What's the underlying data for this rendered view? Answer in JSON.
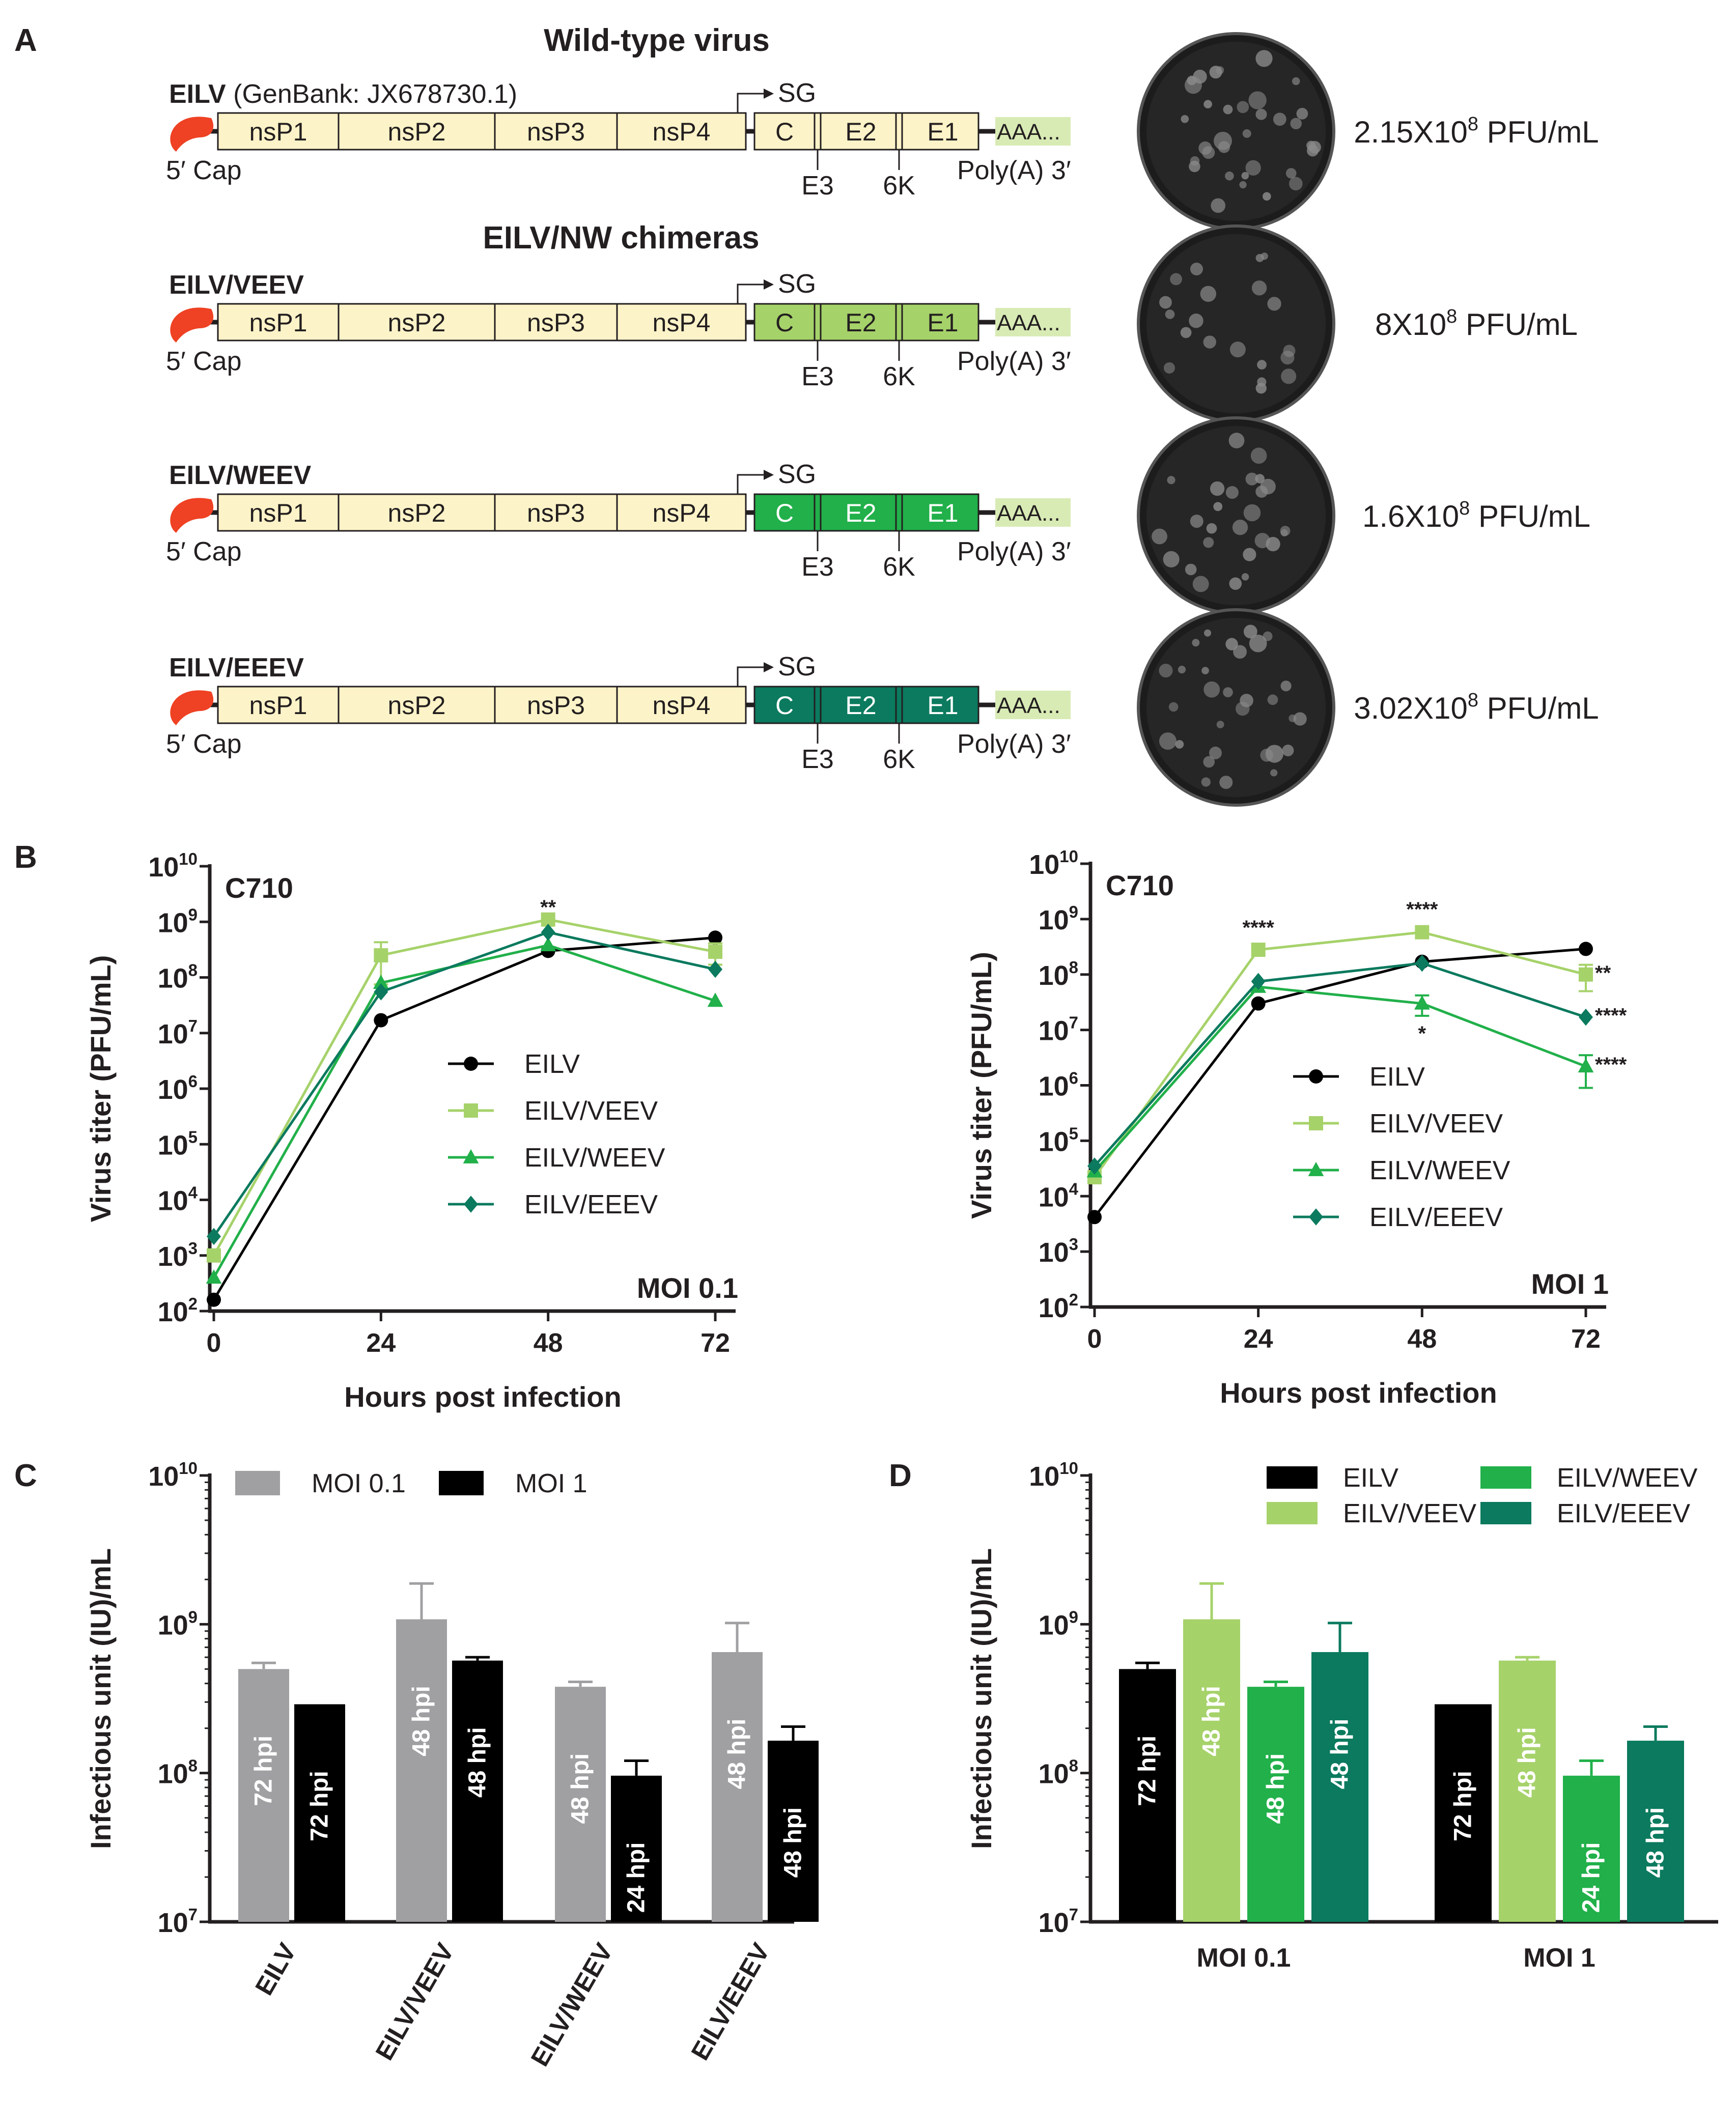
{
  "panel_letters": [
    "A",
    "B",
    "C",
    "D"
  ],
  "panel_a": {
    "title_wt": "Wild-type virus",
    "title_chimeras": "EILV/NW chimeras",
    "rows": [
      {
        "name": "EILV",
        "accession": "(GenBank: JX678730.1)",
        "titer_mant": "2.15X10",
        "titer_exp": "8",
        "titer_unit": " PFU/mL",
        "color": "#fdf3c8"
      },
      {
        "name": "EILV/VEEV",
        "accession": "",
        "titer_mant": "8X10",
        "titer_exp": "8",
        "titer_unit": " PFU/mL",
        "color": "#a6d26a"
      },
      {
        "name": "EILV/WEEV",
        "accession": "",
        "titer_mant": "1.6X10",
        "titer_exp": "8",
        "titer_unit": " PFU/mL",
        "color": "#21b04a"
      },
      {
        "name": "EILV/EEEV",
        "accession": "",
        "titer_mant": "3.02X10",
        "titer_exp": "8",
        "titer_unit": " PFU/mL",
        "color": "#0b7a5e"
      }
    ],
    "genes_ns": [
      "nsP1",
      "nsP2",
      "nsP3",
      "nsP4"
    ],
    "genes_s": [
      "C",
      "E2",
      "E1"
    ],
    "sub_labels": [
      "E3",
      "6K"
    ],
    "sg_label": "SG",
    "polya": "AAA...",
    "cap_label": "5′ Cap",
    "polya_label": "Poly(A) 3′",
    "ns_color": "#fdf3c8",
    "cap_color": "#ef4123"
  },
  "chart_data": [
    {
      "type": "line",
      "panel": "B",
      "title": "C710",
      "annotation": "MOI 0.1",
      "xlabel": "Hours post infection",
      "ylabel": "Virus titer (PFU/mL)",
      "x": [
        0,
        24,
        48,
        72
      ],
      "xticks": [
        "0",
        "24",
        "48",
        "72"
      ],
      "xlim": [
        0,
        72
      ],
      "yscale": "log",
      "ylim_exp": [
        2,
        10
      ],
      "series": [
        {
          "name": "EILV",
          "marker": "circle",
          "color": "#000000",
          "values": [
            160,
            17000000,
            300000000,
            520000000
          ],
          "err": [
            0,
            0,
            0,
            0
          ]
        },
        {
          "name": "EILV/VEEV",
          "marker": "square",
          "color": "#a6d26a",
          "values": [
            1000,
            250000000,
            1100000000,
            290000000
          ],
          "err": [
            0,
            180000000,
            0,
            120000000
          ]
        },
        {
          "name": "EILV/WEEV",
          "marker": "triangle",
          "color": "#21b04a",
          "values": [
            400,
            80000000,
            380000000,
            38000000
          ],
          "err": [
            0,
            0,
            0,
            0
          ]
        },
        {
          "name": "EILV/EEEV",
          "marker": "diamond",
          "color": "#0b7a5e",
          "values": [
            2200,
            55000000,
            650000000,
            140000000
          ],
          "err": [
            0,
            0,
            0,
            0
          ]
        }
      ],
      "stars": [
        {
          "x": 48,
          "y": 1700000000,
          "text": "**"
        }
      ]
    },
    {
      "type": "line",
      "panel": "B",
      "title": "C710",
      "annotation": "MOI 1",
      "xlabel": "Hours post infection",
      "ylabel": "Virus titer (PFU/mL)",
      "x": [
        0,
        24,
        48,
        72
      ],
      "xticks": [
        "0",
        "24",
        "48",
        "72"
      ],
      "xlim": [
        0,
        72
      ],
      "yscale": "log",
      "ylim_exp": [
        2,
        10
      ],
      "series": [
        {
          "name": "EILV",
          "marker": "circle",
          "color": "#000000",
          "values": [
            4200,
            30000000,
            170000000,
            290000000
          ],
          "err": [
            0,
            0,
            0,
            0
          ]
        },
        {
          "name": "EILV/VEEV",
          "marker": "square",
          "color": "#a6d26a",
          "values": [
            22000,
            280000000,
            580000000,
            100000000
          ],
          "err": [
            0,
            0,
            0,
            50000000
          ]
        },
        {
          "name": "EILV/WEEV",
          "marker": "triangle",
          "color": "#21b04a",
          "values": [
            28000,
            60000000,
            30000000,
            2200000
          ],
          "err": [
            0,
            0,
            12000000,
            1300000
          ]
        },
        {
          "name": "EILV/EEEV",
          "marker": "diamond",
          "color": "#0b7a5e",
          "values": [
            35000,
            75000000,
            160000000,
            17000000
          ],
          "err": [
            0,
            0,
            0,
            0
          ]
        }
      ],
      "stars": [
        {
          "x": 24,
          "y": 650000000,
          "text": "****"
        },
        {
          "x": 48,
          "y": 1400000000,
          "text": "****"
        },
        {
          "x": 72,
          "y": 100000000,
          "text": "**",
          "side": "right"
        },
        {
          "x": 72,
          "y": 17000000,
          "text": "****",
          "side": "right"
        },
        {
          "x": 72,
          "y": 2200000,
          "text": "****",
          "side": "right"
        },
        {
          "x": 48,
          "y": 8000000,
          "text": "*"
        }
      ]
    },
    {
      "type": "bar",
      "panel": "C",
      "categories": [
        "EILV",
        "EILV/VEEV",
        "EILV/WEEV",
        "EILV/EEEV"
      ],
      "ylabel": "Infectious unit (IU)/mL",
      "yscale": "log",
      "ylim_exp": [
        7,
        10
      ],
      "series": [
        {
          "name": "MOI 0.1",
          "color": "#a0a0a3",
          "values": [
            500000000,
            1080000000,
            380000000,
            650000000
          ],
          "err": [
            50000000,
            800000000,
            30000000,
            370000000
          ],
          "labels": [
            "72 hpi",
            "48 hpi",
            "48 hpi",
            "48 hpi"
          ]
        },
        {
          "name": "MOI 1",
          "color": "#000000",
          "values": [
            290000000,
            570000000,
            96000000,
            165000000
          ],
          "err": [
            0,
            30000000,
            25000000,
            40000000
          ],
          "labels": [
            "72 hpi",
            "48 hpi",
            "24 hpi",
            "48 hpi"
          ]
        }
      ]
    },
    {
      "type": "bar",
      "panel": "D",
      "categories": [
        "MOI 0.1",
        "MOI 1"
      ],
      "ylabel": "Infectious unit (IU)/mL",
      "yscale": "log",
      "ylim_exp": [
        7,
        10
      ],
      "series": [
        {
          "name": "EILV",
          "color": "#000000",
          "values": [
            500000000,
            290000000
          ],
          "err": [
            50000000,
            0
          ],
          "labels": [
            "72 hpi",
            "72 hpi"
          ]
        },
        {
          "name": "EILV/VEEV",
          "color": "#a6d26a",
          "values": [
            1080000000,
            570000000
          ],
          "err": [
            800000000,
            30000000
          ],
          "labels": [
            "48 hpi",
            "48 hpi"
          ]
        },
        {
          "name": "EILV/WEEV",
          "color": "#21b04a",
          "values": [
            380000000,
            96000000
          ],
          "err": [
            30000000,
            25000000
          ],
          "labels": [
            "48 hpi",
            "24 hpi"
          ]
        },
        {
          "name": "EILV/EEEV",
          "color": "#0b7a5e",
          "values": [
            650000000,
            165000000
          ],
          "err": [
            370000000,
            40000000
          ],
          "labels": [
            "48 hpi",
            "48 hpi"
          ]
        }
      ]
    }
  ]
}
